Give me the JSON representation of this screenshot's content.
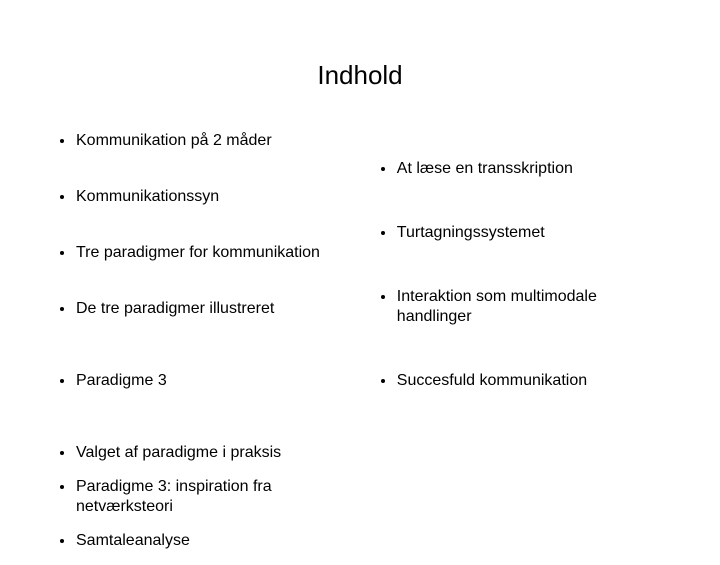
{
  "title": "Indhold",
  "left": [
    "Kommunikation på 2 måder",
    "Kommunikationssyn",
    "Tre paradigmer for kommunikation",
    "De tre paradigmer illustreret",
    "Paradigme 3",
    "Valget af paradigme i praksis",
    "Paradigme 3: inspiration fra netværksteori",
    "Samtaleanalyse"
  ],
  "right": [
    "At læse en transskription",
    "Turtagningssystemet",
    "Interaktion som multimodale handlinger",
    "Succesfuld kommunikation"
  ],
  "style": {
    "background": "#ffffff",
    "text_color": "#000000",
    "title_fontsize": 26,
    "body_fontsize": 16,
    "font_family": "Arial"
  }
}
